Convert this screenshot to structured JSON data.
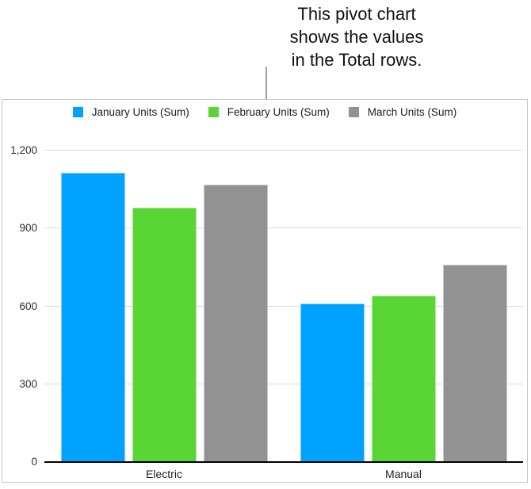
{
  "callout": {
    "lines": [
      "This pivot chart",
      "shows the values",
      "in the Total rows."
    ]
  },
  "chart_data": {
    "type": "bar",
    "title": "",
    "categories": [
      "Electric",
      "Manual"
    ],
    "series": [
      {
        "name": "January Units (Sum)",
        "color": "#00A2FF",
        "values": [
          1115,
          610
        ]
      },
      {
        "name": "February Units (Sum)",
        "color": "#59D636",
        "values": [
          980,
          640
        ]
      },
      {
        "name": "March Units (Sum)",
        "color": "#929292",
        "values": [
          1070,
          760
        ]
      }
    ],
    "ylim": [
      0,
      1200
    ],
    "yticks": [
      0,
      300,
      600,
      900,
      1200
    ],
    "ytick_labels": [
      "0",
      "300",
      "600",
      "900",
      "1,200"
    ],
    "grid": true,
    "legend_position": "top-center",
    "xlabel": "",
    "ylabel": ""
  },
  "colors": {
    "background": "#ffffff",
    "panel_border": "#c7c7c7",
    "gridline": "#dadada",
    "zero_axis": "#000000",
    "leader_line": "#a0a0a0",
    "callout_text": "#121212"
  }
}
